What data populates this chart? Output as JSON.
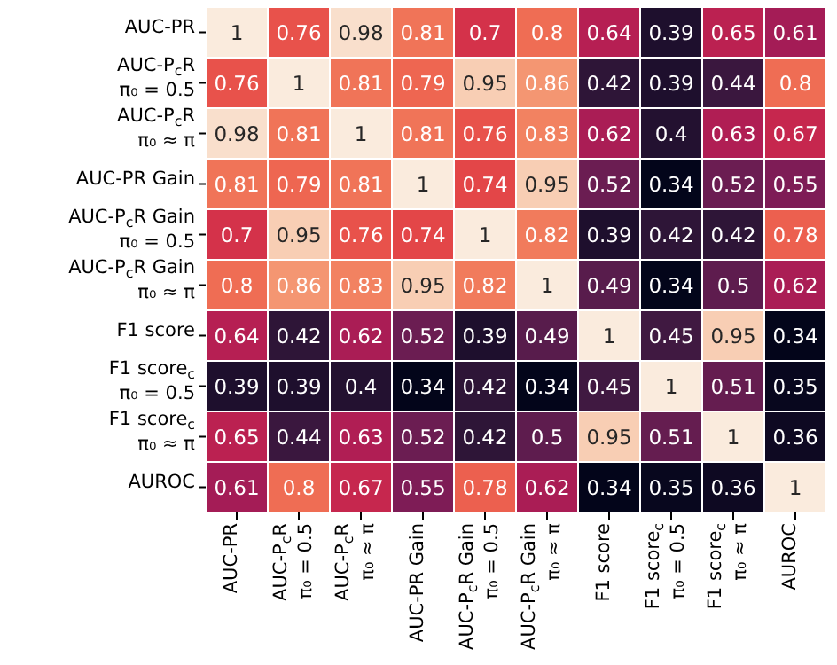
{
  "chart_data": {
    "type": "heatmap",
    "data_labels": true,
    "categories": [
      "AUC-PR",
      "AUC-P$_{c}$R\nπ₀ = 0.5",
      "AUC-P$_{c}$R\nπ₀ ≈ π",
      "AUC-PR Gain",
      "AUC-P$_{c}$R Gain\nπ₀ = 0.5",
      "AUC-P$_{c}$R Gain\nπ₀ ≈ π",
      "F1 score",
      "F1 score$_{c}$\nπ₀ = 0.5",
      "F1 score$_{c}$\nπ₀ ≈ π",
      "AUROC"
    ],
    "y_categories": [
      "AUC-PR",
      "AUC-P$_{c}$R\nπ₀ = 0.5",
      "AUC-P$_{c}$R\nπ₀ ≈ π",
      "AUC-PR Gain",
      "AUC-P$_{c}$R Gain\nπ₀ = 0.5",
      "AUC-P$_{c}$R Gain\nπ₀ ≈ π",
      "F1 score",
      "F1 score$_{c}$\nπ₀ = 0.5",
      "F1 score$_{c}$\nπ₀ ≈ π",
      "AUROC"
    ],
    "cells": [
      [
        1,
        0.76,
        0.98,
        0.81,
        0.7,
        0.8,
        0.64,
        0.39,
        0.65,
        0.61
      ],
      [
        0.76,
        1,
        0.81,
        0.79,
        0.95,
        0.86,
        0.42,
        0.39,
        0.44,
        0.8
      ],
      [
        0.98,
        0.81,
        1,
        0.81,
        0.76,
        0.83,
        0.62,
        0.4,
        0.63,
        0.67
      ],
      [
        0.81,
        0.79,
        0.81,
        1,
        0.74,
        0.95,
        0.52,
        0.34,
        0.52,
        0.55
      ],
      [
        0.7,
        0.95,
        0.76,
        0.74,
        1,
        0.82,
        0.39,
        0.42,
        0.42,
        0.78
      ],
      [
        0.8,
        0.86,
        0.83,
        0.95,
        0.82,
        1,
        0.49,
        0.34,
        0.5,
        0.62
      ],
      [
        0.64,
        0.42,
        0.62,
        0.52,
        0.39,
        0.49,
        1,
        0.45,
        0.95,
        0.34
      ],
      [
        0.39,
        0.39,
        0.4,
        0.34,
        0.42,
        0.34,
        0.45,
        1,
        0.51,
        0.35
      ],
      [
        0.65,
        0.44,
        0.63,
        0.52,
        0.42,
        0.5,
        0.95,
        0.51,
        1,
        0.36
      ],
      [
        0.61,
        0.8,
        0.67,
        0.55,
        0.78,
        0.62,
        0.34,
        0.35,
        0.36,
        1
      ]
    ]
  }
}
